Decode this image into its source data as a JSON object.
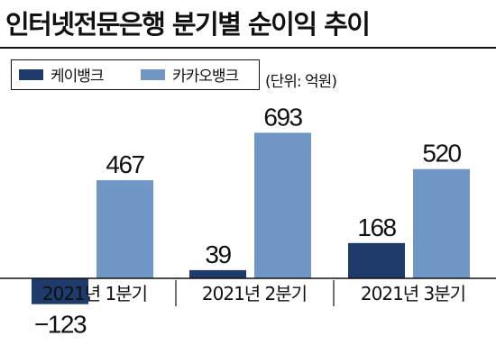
{
  "title": "인터넷전문은행 분기별 순이익 추이",
  "unit": "(단위: 억원)",
  "colors": {
    "kbank": "#1e3b6b",
    "kakaobank": "#6f96c4",
    "baseline": "#111111"
  },
  "legend": [
    {
      "label": "케이뱅크",
      "color": "#1e3b6b"
    },
    {
      "label": "카카오뱅크",
      "color": "#6f96c4"
    }
  ],
  "chart_data": {
    "type": "bar",
    "categories": [
      "2021년 1분기",
      "2021년 2분기",
      "2021년 3분기"
    ],
    "series": [
      {
        "name": "케이뱅크",
        "values": [
          -123,
          39,
          168
        ]
      },
      {
        "name": "카카오뱅크",
        "values": [
          467,
          693,
          520
        ]
      }
    ],
    "data_labels": [
      [
        "−123",
        "39",
        "168"
      ],
      [
        "467",
        "693",
        "520"
      ]
    ],
    "title": "인터넷전문은행 분기별 순이익 추이",
    "xlabel": "",
    "ylabel": "",
    "grid": false,
    "legend": "top-left"
  }
}
